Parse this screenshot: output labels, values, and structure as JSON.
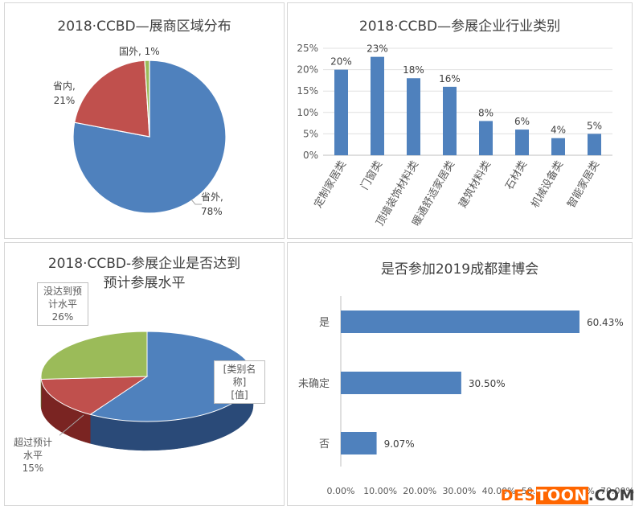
{
  "chart_data": [
    {
      "type": "pie",
      "title": "2018·CCBD—展商区域分布",
      "labels": [
        "省外",
        "省内",
        "国外"
      ],
      "values": [
        78,
        21,
        1
      ],
      "value_labels": [
        "78%",
        "21%",
        "1%"
      ],
      "colors": [
        "#4f81bd",
        "#c0504d",
        "#9bbb59"
      ]
    },
    {
      "type": "bar",
      "title": "2018·CCBD—参展企业行业类别",
      "categories": [
        "定制家居类",
        "门窗类",
        "顶墙装饰材料类",
        "暖通舒适家居类",
        "建筑材料类",
        "石材类",
        "机械设备类",
        "智能家居类"
      ],
      "values": [
        20,
        23,
        18,
        16,
        8,
        6,
        4,
        5
      ],
      "value_labels": [
        "20%",
        "23%",
        "18%",
        "16%",
        "8%",
        "6%",
        "4%",
        "5%"
      ],
      "yticks": [
        "0%",
        "5%",
        "10%",
        "15%",
        "20%",
        "25%"
      ],
      "ylim": [
        0,
        25
      ],
      "color": "#4f81bd"
    },
    {
      "type": "pie",
      "title": "2018·CCBD-参展企业是否达到预计参展水平",
      "title_lines": [
        "2018·CCBD-参展企业是否达到",
        "预计参展水平"
      ],
      "labels": [
        "[类别名称]",
        "超过预计水平",
        "没达到预计水平"
      ],
      "values": [
        59,
        15,
        26
      ],
      "value_labels": [
        "[值]",
        "15%",
        "26%"
      ],
      "colors": [
        "#4f81bd",
        "#c0504d",
        "#9bbb59"
      ],
      "label_lines": {
        "blue": [
          "[类别名",
          "称]",
          "[值]"
        ],
        "red": [
          "超过预计",
          "水平",
          "15%"
        ],
        "green": [
          "没达到预",
          "计水平",
          "26%"
        ]
      }
    },
    {
      "type": "bar",
      "orientation": "horizontal",
      "title": "是否参加2019成都建博会",
      "categories": [
        "是",
        "未确定",
        "否"
      ],
      "values": [
        60.43,
        30.5,
        9.07
      ],
      "value_labels": [
        "60.43%",
        "30.50%",
        "9.07%"
      ],
      "xticks": [
        "0.00%",
        "10.00%",
        "20.00%",
        "30.00%",
        "40.00%",
        "50.00%",
        "60.00%",
        "70.00%"
      ],
      "xlim": [
        0,
        70
      ],
      "color": "#4f81bd"
    }
  ],
  "watermark": {
    "part1": "DES",
    "part2": "TOON",
    "part3": ".COM"
  }
}
